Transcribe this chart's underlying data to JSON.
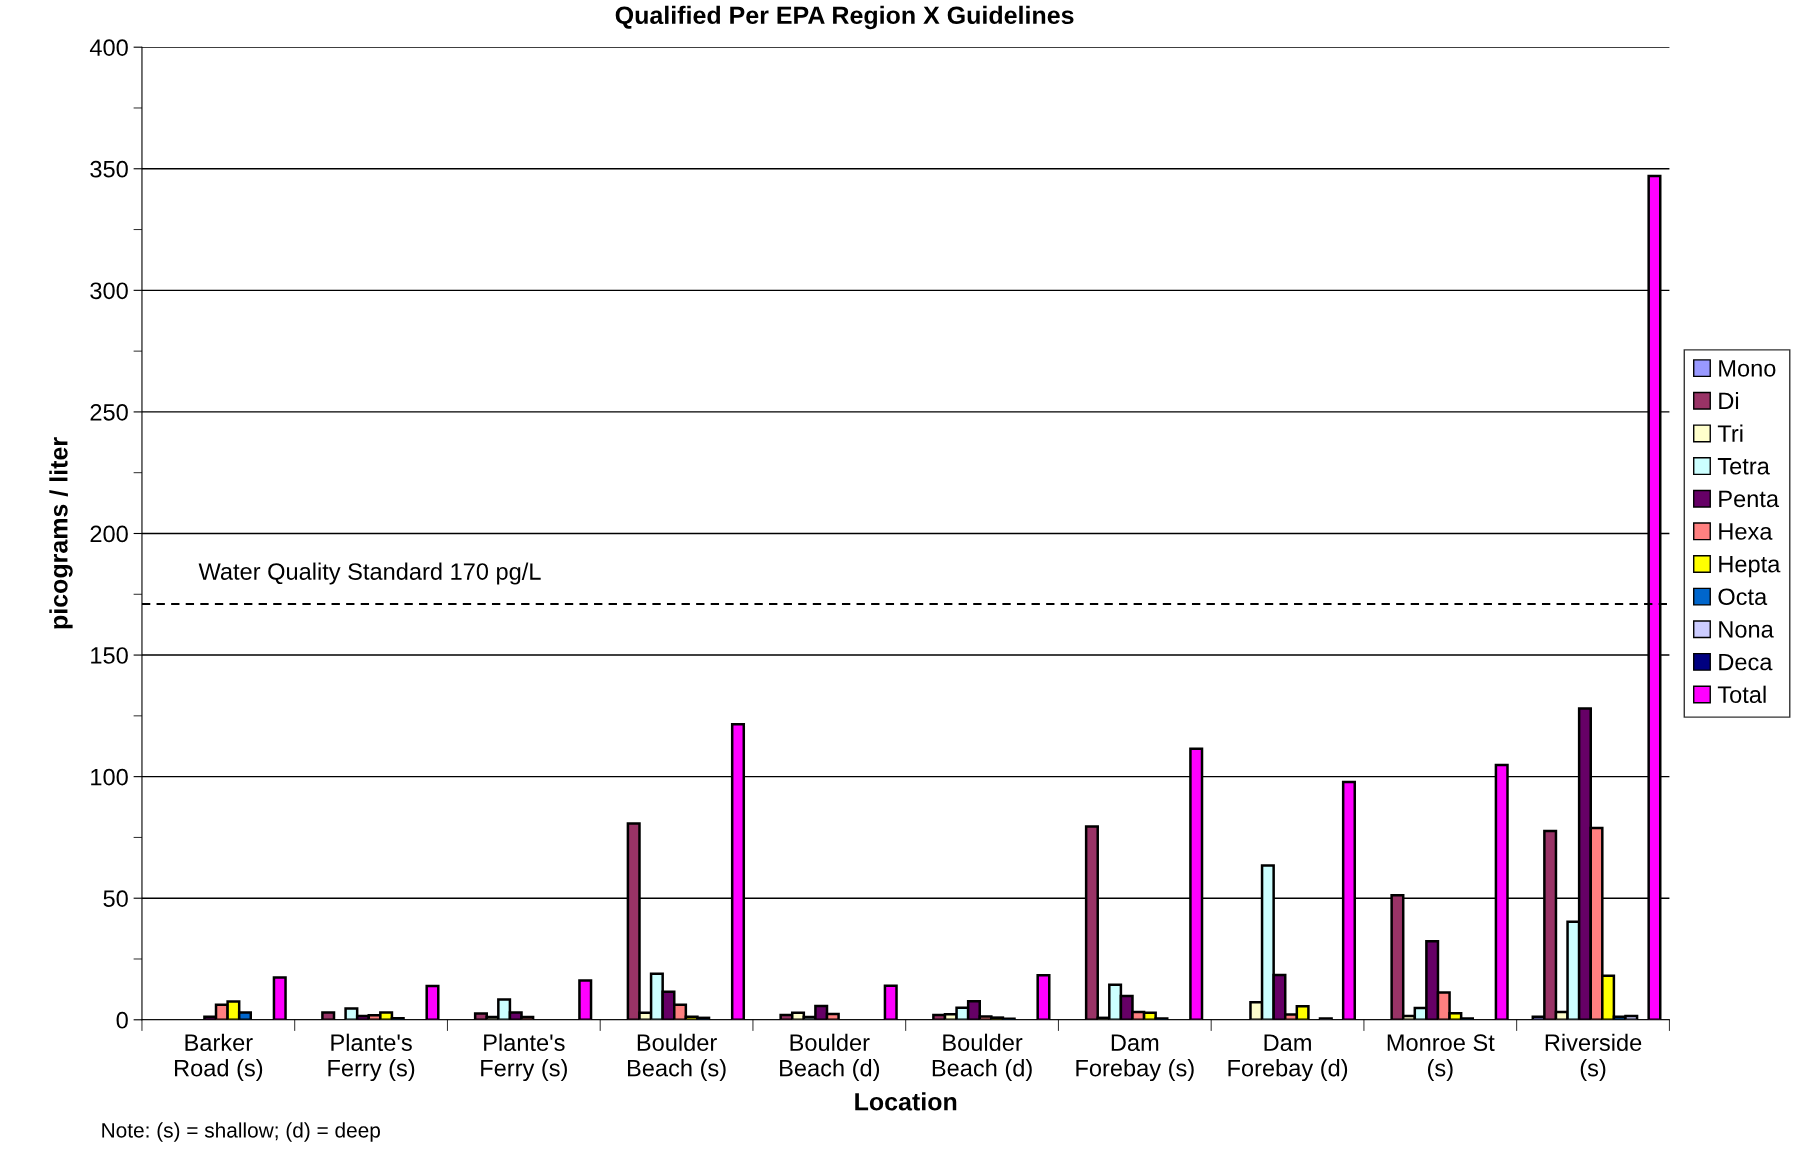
{
  "chart_data": {
    "type": "bar",
    "title": "Qualified Per EPA Region X Guidelines",
    "xlabel": "Location",
    "ylabel": "picograms / liter",
    "categories": [
      "Barker\nRoad (s)",
      "Plante's\nFerry (s)",
      "Plante's\nFerry (s)",
      "Boulder\nBeach (s)",
      "Boulder\nBeach (d)",
      "Boulder\nBeach (d)",
      "Dam\nForebay (s)",
      "Dam\nForebay (d)",
      "Monroe St\n(s)",
      "Riverside\n(s)"
    ],
    "series": [
      {
        "name": "Mono",
        "color": "#9999ff",
        "values": [
          null,
          null,
          null,
          null,
          null,
          null,
          null,
          null,
          null,
          1.3
        ]
      },
      {
        "name": "Di",
        "color": "#993366",
        "values": [
          null,
          3,
          2.6,
          80.7,
          2,
          2,
          79.5,
          null,
          51.2,
          77.6
        ]
      },
      {
        "name": "Tri",
        "color": "#ffffcc",
        "values": [
          null,
          null,
          1.1,
          2.9,
          2.9,
          2.3,
          0.8,
          7.2,
          1.6,
          3.2
        ]
      },
      {
        "name": "Tetra",
        "color": "#ccffff",
        "values": [
          null,
          4.6,
          8.3,
          18.9,
          1.1,
          4.9,
          14.4,
          63.5,
          4.8,
          40.3
        ]
      },
      {
        "name": "Penta",
        "color": "#660066",
        "values": [
          1.3,
          1.6,
          3,
          11.5,
          5.7,
          7.6,
          9.8,
          18.4,
          32.3,
          128
        ]
      },
      {
        "name": "Hexa",
        "color": "#ff8080",
        "values": [
          6.2,
          1.9,
          1.1,
          6.2,
          2.4,
          1.4,
          3.2,
          2.2,
          11.2,
          78.9
        ]
      },
      {
        "name": "Hepta",
        "color": "#ffff00",
        "values": [
          7.5,
          3,
          null,
          1.3,
          null,
          0.9,
          2.9,
          5.6,
          2.7,
          18.1
        ]
      },
      {
        "name": "Octa",
        "color": "#0066cc",
        "values": [
          3,
          0.6,
          null,
          0.8,
          null,
          0.4,
          0.5,
          null,
          0.5,
          1.3
        ]
      },
      {
        "name": "Nona",
        "color": "#ccccff",
        "values": [
          null,
          null,
          null,
          null,
          null,
          null,
          null,
          0.5,
          null,
          1.6
        ]
      },
      {
        "name": "Deca",
        "color": "#000080",
        "values": [
          null,
          null,
          null,
          null,
          null,
          null,
          null,
          null,
          null,
          null
        ]
      },
      {
        "name": "Total",
        "color": "#ff00ff",
        "values": [
          17.4,
          13.9,
          16.2,
          121.5,
          14,
          18.3,
          111.5,
          97.8,
          104.8,
          347
        ]
      }
    ],
    "ylim": [
      0,
      400
    ],
    "yticks": [
      0,
      50,
      100,
      150,
      200,
      250,
      300,
      350,
      400
    ],
    "grid": "y",
    "legend": "right",
    "ref_lines": [
      {
        "axis": "y",
        "value": 171,
        "label": "Water Quality Standard 170 pg/L",
        "color": "#000000",
        "line_style": "dashed"
      }
    ],
    "annotations": [
      "Note: (s) = shallow; (d) = deep"
    ]
  }
}
